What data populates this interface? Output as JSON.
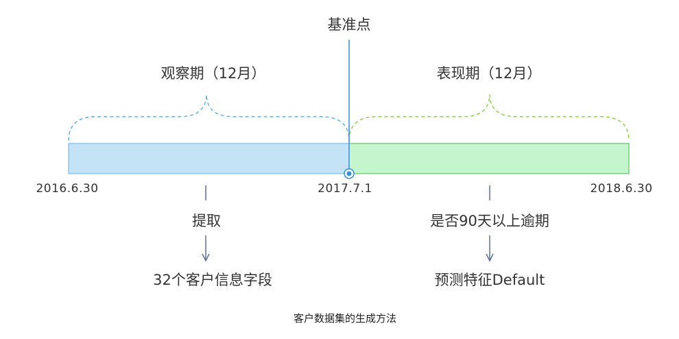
{
  "timeline": {
    "reference_point_label": "基准点",
    "observation_period_label": "观察期（12月）",
    "performance_period_label": "表现期（12月）",
    "start_date": "2016.6.30",
    "reference_date": "2017.7.1",
    "end_date": "2018.6.30"
  },
  "process": {
    "extract_label": "提取",
    "extract_result": "32个客户信息字段",
    "overdue_label": "是否90天以上逾期",
    "overdue_result": "预测特征Default"
  },
  "caption": "客户数据集的生成方法",
  "colors": {
    "observation_fill": "#c5e3f6",
    "observation_stroke": "#5bb4e8",
    "performance_fill": "#c4f5cc",
    "performance_stroke": "#4cb84f",
    "reference_line": "#2f8fe0",
    "performance_brace": "#8fd24a",
    "arrow": "#5a6f99"
  }
}
